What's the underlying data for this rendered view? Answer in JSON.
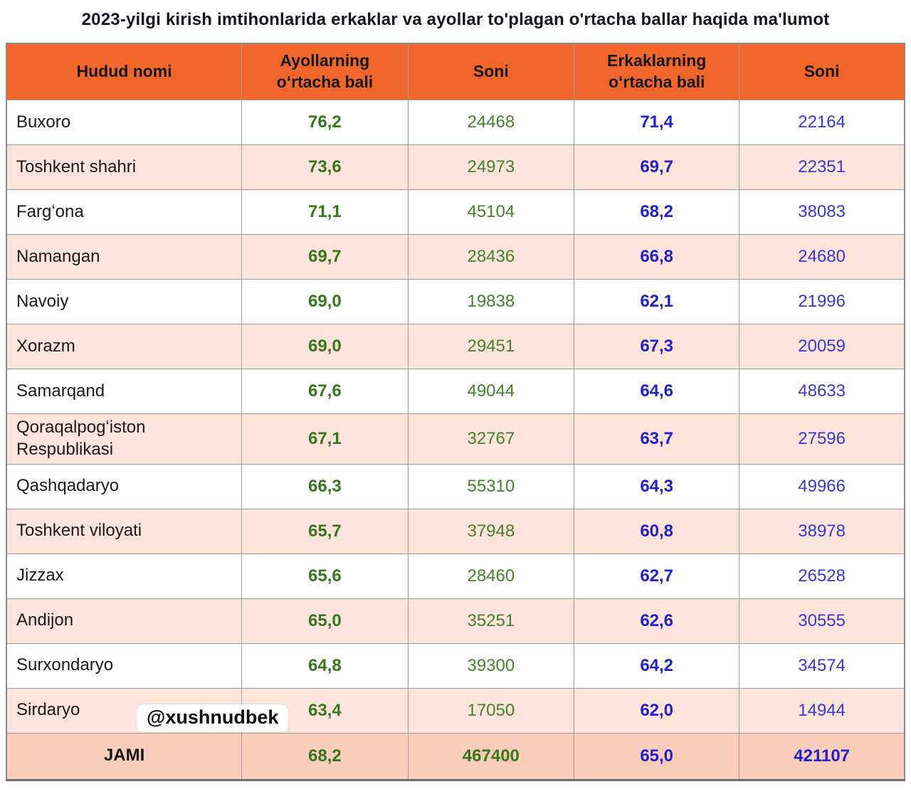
{
  "title": "2023-yilgi kirish imtihonlarida erkaklar va ayollar to'plagan o'rtacha ballar haqida ma'lumot",
  "watermark": "@xushnudbek",
  "colors": {
    "header_background": "#F1662B",
    "zebra_pink": "#FCE4DA",
    "total_row_pink": "#FACDBB",
    "grid_line": "#9B9B9B",
    "female_value_green": "#38761D",
    "female_count_green": "#45802F",
    "male_value_blue": "#2020CC",
    "male_count_blue": "#3939D2"
  },
  "chart_data": {
    "type": "table",
    "title": "2023-yilgi kirish imtihonlarida erkaklar va ayollar to'plagan o'rtacha ballar haqida ma'lumot",
    "columns": [
      "Hudud nomi",
      "Ayollarning oʻrtacha bali",
      "Soni",
      "Erkaklarning oʻrtacha bali",
      "Soni"
    ],
    "rows": [
      [
        "Buxoro",
        "76,2",
        "24468",
        "71,4",
        "22164"
      ],
      [
        "Toshkent shahri",
        "73,6",
        "24973",
        "69,7",
        "22351"
      ],
      [
        "Fargʻona",
        "71,1",
        "45104",
        "68,2",
        "38083"
      ],
      [
        "Namangan",
        "69,7",
        "28436",
        "66,8",
        "24680"
      ],
      [
        "Navoiy",
        "69,0",
        "19838",
        "62,1",
        "21996"
      ],
      [
        "Xorazm",
        "69,0",
        "29451",
        "67,3",
        "20059"
      ],
      [
        "Samarqand",
        "67,6",
        "49044",
        "64,6",
        "48633"
      ],
      [
        "Qoraqalpogʻiston Respublikasi",
        "67,1",
        "32767",
        "63,7",
        "27596"
      ],
      [
        "Qashqadaryo",
        "66,3",
        "55310",
        "64,3",
        "49966"
      ],
      [
        "Toshkent viloyati",
        "65,7",
        "37948",
        "60,8",
        "38978"
      ],
      [
        "Jizzax",
        "65,6",
        "28460",
        "62,7",
        "26528"
      ],
      [
        "Andijon",
        "65,0",
        "35251",
        "62,6",
        "30555"
      ],
      [
        "Surxondaryo",
        "64,8",
        "39300",
        "64,2",
        "34574"
      ],
      [
        "Sirdaryo",
        "63,4",
        "17050",
        "62,0",
        "14944"
      ]
    ],
    "total": [
      "JAMI",
      "68,2",
      "467400",
      "65,0",
      "421107"
    ]
  }
}
